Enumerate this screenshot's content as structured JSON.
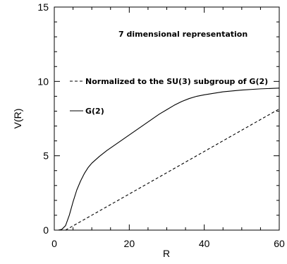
{
  "chart_data": {
    "type": "line",
    "title": "",
    "xlabel": "R",
    "ylabel": "V(R)",
    "xlim": [
      0,
      60
    ],
    "ylim": [
      0,
      15
    ],
    "x_ticks": [
      "0",
      "20",
      "40",
      "60"
    ],
    "y_ticks": [
      "0",
      "5",
      "10",
      "15"
    ],
    "x_tick_values": [
      0,
      20,
      40,
      60
    ],
    "y_tick_values": [
      0,
      5,
      10,
      15
    ],
    "grid": false,
    "annotations": {
      "representation": "7 dimensional representation"
    },
    "legend": {
      "placement": "left-inside",
      "entries": [
        {
          "label": "Normalized to the SU(3) subgroup of G(2)",
          "style": "dashed"
        },
        {
          "label": "G(2)",
          "style": "solid"
        }
      ]
    },
    "series": [
      {
        "name": "G(2)",
        "style": "solid",
        "x": [
          0,
          1,
          2,
          3,
          4,
          5,
          6,
          7,
          8,
          9,
          10,
          12,
          14,
          16,
          18,
          20,
          22,
          24,
          26,
          28,
          30,
          32,
          34,
          36,
          38,
          40,
          45,
          50,
          55,
          60
        ],
        "y": [
          0.0,
          0.0,
          0.05,
          0.3,
          1.0,
          1.9,
          2.7,
          3.3,
          3.8,
          4.2,
          4.5,
          4.95,
          5.35,
          5.7,
          6.05,
          6.4,
          6.75,
          7.1,
          7.45,
          7.8,
          8.1,
          8.4,
          8.65,
          8.85,
          9.0,
          9.1,
          9.3,
          9.42,
          9.5,
          9.55
        ]
      },
      {
        "name": "Normalized to the SU(3) subgroup of G(2)",
        "style": "dashed",
        "x": [
          3,
          60
        ],
        "y": [
          0.0,
          8.15
        ]
      }
    ]
  }
}
